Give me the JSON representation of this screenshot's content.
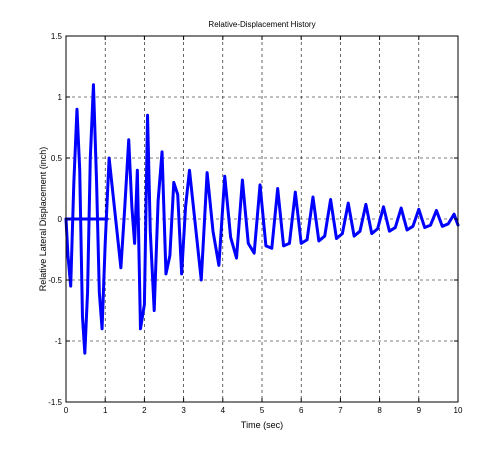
{
  "chart_data": {
    "type": "line",
    "title": "Relative-Displacement History",
    "xlabel": "Time (sec)",
    "ylabel": "Relative Lateral Displacement (inch)",
    "xlim": [
      0,
      10
    ],
    "ylim": [
      -1.5,
      1.5
    ],
    "grid": true,
    "legend": "none",
    "line_color": "#0000ff",
    "x_ticks": [
      "0",
      "1",
      "2",
      "3",
      "4",
      "5",
      "6",
      "7",
      "8",
      "9",
      "10"
    ],
    "y_ticks": [
      "-1.5",
      "-1",
      "-0.5",
      "0",
      "0.5",
      "1",
      "1.5"
    ],
    "series": [
      {
        "x": [
          0,
          0.05,
          0.12,
          0.2,
          0.28,
          0.35,
          0.42,
          0.48,
          0.55,
          0.62,
          0.7,
          0.78,
          0.85,
          0.92,
          1.0,
          1.1,
          1.2,
          1.3,
          1.4,
          1.5,
          1.6,
          1.68,
          1.75,
          1.82,
          1.9,
          2.0,
          2.08,
          2.15,
          2.25,
          2.35,
          2.45,
          2.55,
          2.65,
          2.75,
          2.85,
          2.95,
          3.05,
          3.15,
          3.3,
          3.45,
          3.6,
          3.75,
          3.9,
          4.05,
          4.2,
          4.35,
          4.5,
          4.65,
          4.8,
          4.95,
          5.1,
          5.25,
          5.4,
          5.55,
          5.7,
          5.85,
          6.0,
          6.15,
          6.3,
          6.45,
          6.6,
          6.75,
          6.9,
          7.05,
          7.2,
          7.35,
          7.5,
          7.65,
          7.8,
          7.95,
          8.1,
          8.25,
          8.4,
          8.55,
          8.7,
          8.85,
          9.0,
          9.15,
          9.3,
          9.45,
          9.6,
          9.75,
          9.9,
          10.0
        ],
        "values": [
          0,
          -0.3,
          -0.55,
          0.3,
          0.9,
          0.4,
          -0.8,
          -1.1,
          -0.6,
          0.5,
          1.1,
          0.3,
          -0.6,
          -0.9,
          -0.2,
          0.5,
          0.2,
          -0.1,
          -0.4,
          0.1,
          0.65,
          0.1,
          -0.2,
          0.4,
          -0.9,
          -0.7,
          0.85,
          -0.1,
          -0.75,
          0.15,
          0.55,
          -0.45,
          -0.3,
          0.3,
          0.2,
          -0.45,
          0.1,
          0.4,
          -0.05,
          -0.5,
          0.38,
          -0.1,
          -0.38,
          0.35,
          -0.15,
          -0.32,
          0.32,
          -0.2,
          -0.28,
          0.28,
          -0.22,
          -0.24,
          0.25,
          -0.22,
          -0.2,
          0.22,
          -0.2,
          -0.17,
          0.18,
          -0.18,
          -0.14,
          0.16,
          -0.16,
          -0.12,
          0.13,
          -0.14,
          -0.1,
          0.12,
          -0.12,
          -0.08,
          0.1,
          -0.1,
          -0.07,
          0.09,
          -0.09,
          -0.06,
          0.08,
          -0.07,
          -0.05,
          0.07,
          -0.06,
          -0.04,
          0.04,
          -0.05
        ]
      },
      {
        "x": [
          0,
          1.05
        ],
        "values": [
          0,
          0
        ]
      }
    ]
  }
}
